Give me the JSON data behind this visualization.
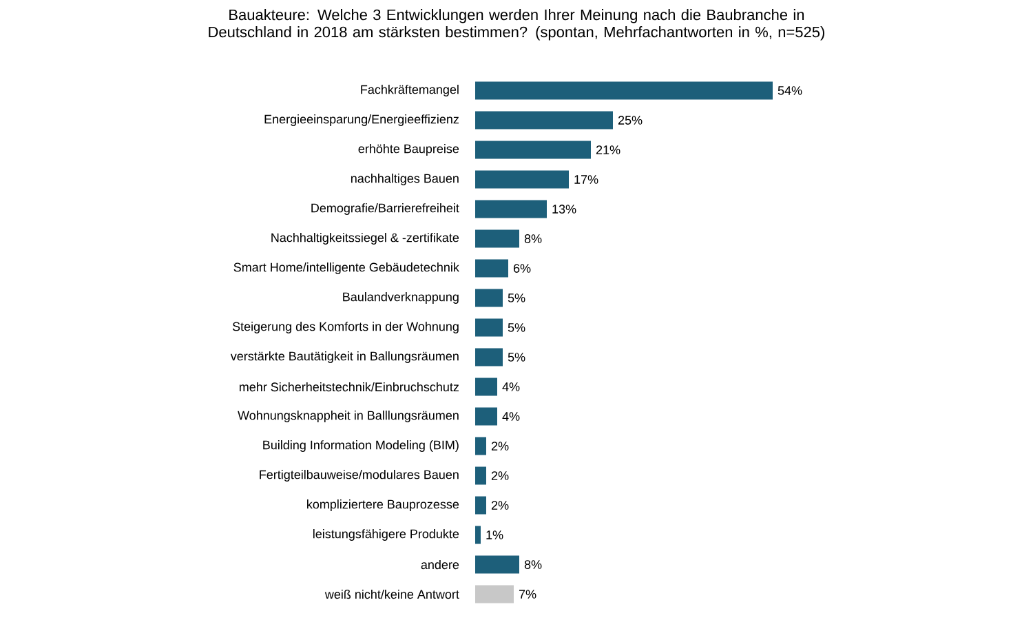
{
  "chart_data": {
    "type": "bar",
    "orientation": "horizontal",
    "title": "Bauakteure: Welche 3 Entwicklungen werden Ihrer Meinung nach die Baubranche in Deutschland in 2018 am stärksten bestimmen? (spontan, Mehrfachantworten in %, n=525)",
    "categories": [
      "Fachkräftemangel",
      "Energieeinsparung/Energieeffizienz",
      "erhöhte Baupreise",
      "nachhaltiges Bauen",
      "Demografie/Barrierefreiheit",
      "Nachhaltigkeitssiegel & -zertifikate",
      "Smart Home/intelligente Gebäudetechnik",
      "Baulandverknappung",
      "Steigerung des Komforts in der Wohnung",
      "verstärkte Bautätigkeit in Ballungsräumen",
      "mehr Sicherheitstechnik/Einbruchschutz",
      "Wohnungsknappheit in Balllungsräumen",
      "Building Information Modeling (BIM)",
      "Fertigteilbauweise/modulares Bauen",
      "kompliziertere Bauprozesse",
      "leistungsfähigere Produkte",
      "andere",
      "weiß nicht/keine Antwort"
    ],
    "values": [
      54,
      25,
      21,
      17,
      13,
      8,
      6,
      5,
      5,
      5,
      4,
      4,
      2,
      2,
      2,
      1,
      8,
      7
    ],
    "value_labels": [
      "54%",
      "25%",
      "21%",
      "17%",
      "13%",
      "8%",
      "6%",
      "5%",
      "5%",
      "5%",
      "4%",
      "4%",
      "2%",
      "2%",
      "2%",
      "1%",
      "8%",
      "7%"
    ],
    "colors": [
      "#1d5f7a",
      "#1d5f7a",
      "#1d5f7a",
      "#1d5f7a",
      "#1d5f7a",
      "#1d5f7a",
      "#1d5f7a",
      "#1d5f7a",
      "#1d5f7a",
      "#1d5f7a",
      "#1d5f7a",
      "#1d5f7a",
      "#1d5f7a",
      "#1d5f7a",
      "#1d5f7a",
      "#1d5f7a",
      "#1d5f7a",
      "#c8c8c8"
    ]
  }
}
